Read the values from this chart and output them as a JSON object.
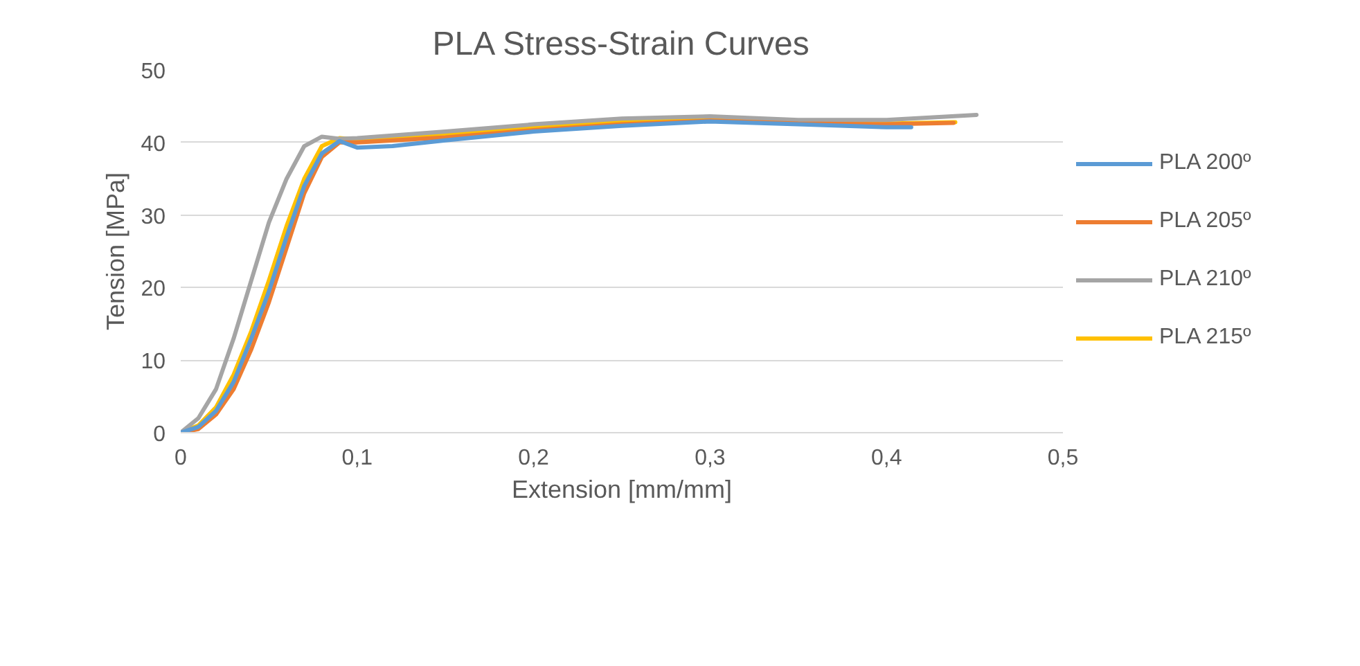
{
  "chart_data": {
    "type": "line",
    "title": "PLA Stress-Strain Curves",
    "xlabel": "Extension [mm/mm]",
    "ylabel": "Tension [MPa]",
    "xlim": [
      0,
      0.5
    ],
    "ylim": [
      0,
      50
    ],
    "xticks": [
      0,
      {
        "value": 0.1,
        "label": "0,1"
      },
      {
        "value": 0.2,
        "label": "0,2"
      },
      {
        "value": 0.3,
        "label": "0,3"
      },
      {
        "value": 0.4,
        "label": "0,4"
      },
      {
        "value": 0.5,
        "label": "0,5"
      }
    ],
    "yticks": [
      0,
      10,
      20,
      30,
      40,
      50
    ],
    "grid": "y",
    "legend": "right",
    "marker": "none",
    "line_style": "solid",
    "series": [
      {
        "name": "PLA 200º",
        "color": "#5b9bd5",
        "x": [
          0,
          0.01,
          0.02,
          0.03,
          0.04,
          0.05,
          0.06,
          0.07,
          0.08,
          0.09,
          0.1,
          0.12,
          0.15,
          0.2,
          0.25,
          0.3,
          0.35,
          0.4,
          0.414
        ],
        "values": [
          0,
          0.8,
          3,
          7,
          13,
          19.5,
          27,
          34,
          38.5,
          40.2,
          39.3,
          39.5,
          40.3,
          41.5,
          42.3,
          42.9,
          42.5,
          42.1,
          42.1
        ]
      },
      {
        "name": "PLA 205º",
        "color": "#ed7d31",
        "x": [
          0,
          0.01,
          0.02,
          0.03,
          0.04,
          0.05,
          0.06,
          0.07,
          0.08,
          0.09,
          0.1,
          0.15,
          0.2,
          0.25,
          0.3,
          0.35,
          0.4,
          0.438
        ],
        "values": [
          0,
          0.5,
          2.5,
          6,
          11.5,
          18,
          25.5,
          33,
          38,
          40,
          40,
          40.7,
          41.7,
          42.5,
          43,
          42.6,
          42.5,
          42.7
        ]
      },
      {
        "name": "PLA 210º",
        "color": "#a5a5a5",
        "x": [
          0,
          0.01,
          0.02,
          0.03,
          0.04,
          0.05,
          0.06,
          0.07,
          0.08,
          0.09,
          0.1,
          0.15,
          0.2,
          0.25,
          0.3,
          0.35,
          0.4,
          0.451
        ],
        "values": [
          0,
          2,
          6,
          13,
          21,
          29,
          35,
          39.5,
          40.8,
          40.5,
          40.6,
          41.5,
          42.5,
          43.3,
          43.6,
          43.1,
          43.1,
          43.8
        ]
      },
      {
        "name": "PLA 215º",
        "color": "#ffc000",
        "x": [
          0,
          0.01,
          0.02,
          0.03,
          0.04,
          0.05,
          0.06,
          0.07,
          0.08,
          0.09,
          0.1,
          0.15,
          0.2,
          0.25,
          0.3,
          0.35,
          0.4,
          0.439
        ],
        "values": [
          0,
          1,
          3.5,
          8,
          14,
          21,
          28.5,
          35,
          39.5,
          40.6,
          40.4,
          41,
          42,
          42.8,
          43.1,
          42.8,
          42.6,
          42.8
        ]
      }
    ]
  }
}
